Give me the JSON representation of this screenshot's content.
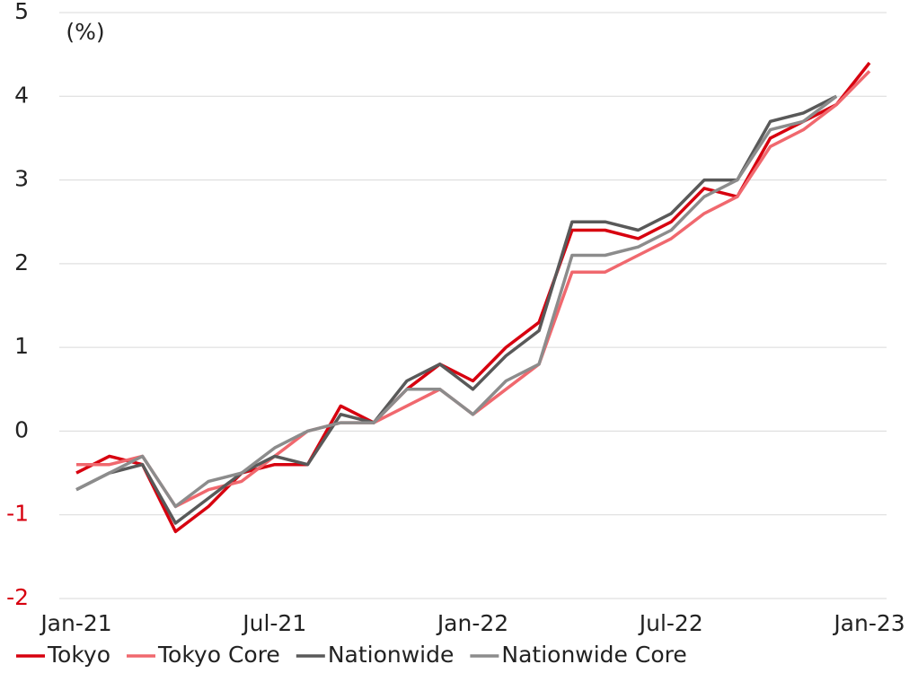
{
  "chart_data": {
    "type": "line",
    "annotation": "(%)",
    "categories": [
      "Jan-21",
      null,
      null,
      null,
      null,
      null,
      "Jul-21",
      null,
      null,
      null,
      null,
      null,
      "Jan-22",
      null,
      null,
      null,
      null,
      null,
      "Jul-22",
      null,
      null,
      null,
      null,
      null,
      "Jan-23"
    ],
    "series": [
      {
        "name": "Tokyo",
        "color": "#d7000f",
        "values": [
          -0.5,
          -0.3,
          -0.4,
          -1.2,
          -0.9,
          -0.5,
          -0.4,
          -0.4,
          0.3,
          0.1,
          0.5,
          0.8,
          0.6,
          1.0,
          1.3,
          2.4,
          2.4,
          2.3,
          2.5,
          2.9,
          2.8,
          3.5,
          3.7,
          3.9,
          4.4
        ]
      },
      {
        "name": "Tokyo Core",
        "color": "#f0686e",
        "values": [
          -0.4,
          -0.4,
          -0.3,
          -0.9,
          -0.7,
          -0.6,
          -0.3,
          0.0,
          0.1,
          0.1,
          0.3,
          0.5,
          0.2,
          0.5,
          0.8,
          1.9,
          1.9,
          2.1,
          2.3,
          2.6,
          2.8,
          3.4,
          3.6,
          3.9,
          4.3
        ]
      },
      {
        "name": "Nationwide",
        "color": "#595959",
        "values": [
          -0.7,
          -0.5,
          -0.4,
          -1.1,
          -0.8,
          -0.5,
          -0.3,
          -0.4,
          0.2,
          0.1,
          0.6,
          0.8,
          0.5,
          0.9,
          1.2,
          2.5,
          2.5,
          2.4,
          2.6,
          3.0,
          3.0,
          3.7,
          3.8,
          4.0,
          null
        ]
      },
      {
        "name": "Nationwide Core",
        "color": "#8c8c8c",
        "values": [
          -0.7,
          -0.5,
          -0.3,
          -0.9,
          -0.6,
          -0.5,
          -0.2,
          0.0,
          0.1,
          0.1,
          0.5,
          0.5,
          0.2,
          0.6,
          0.8,
          2.1,
          2.1,
          2.2,
          2.4,
          2.8,
          3.0,
          3.6,
          3.7,
          4.0,
          null
        ]
      }
    ],
    "ylim": [
      -2,
      5
    ],
    "yticks": [
      -2,
      -1,
      0,
      1,
      2,
      3,
      4,
      5
    ],
    "grid": true,
    "legend": "bottom"
  }
}
